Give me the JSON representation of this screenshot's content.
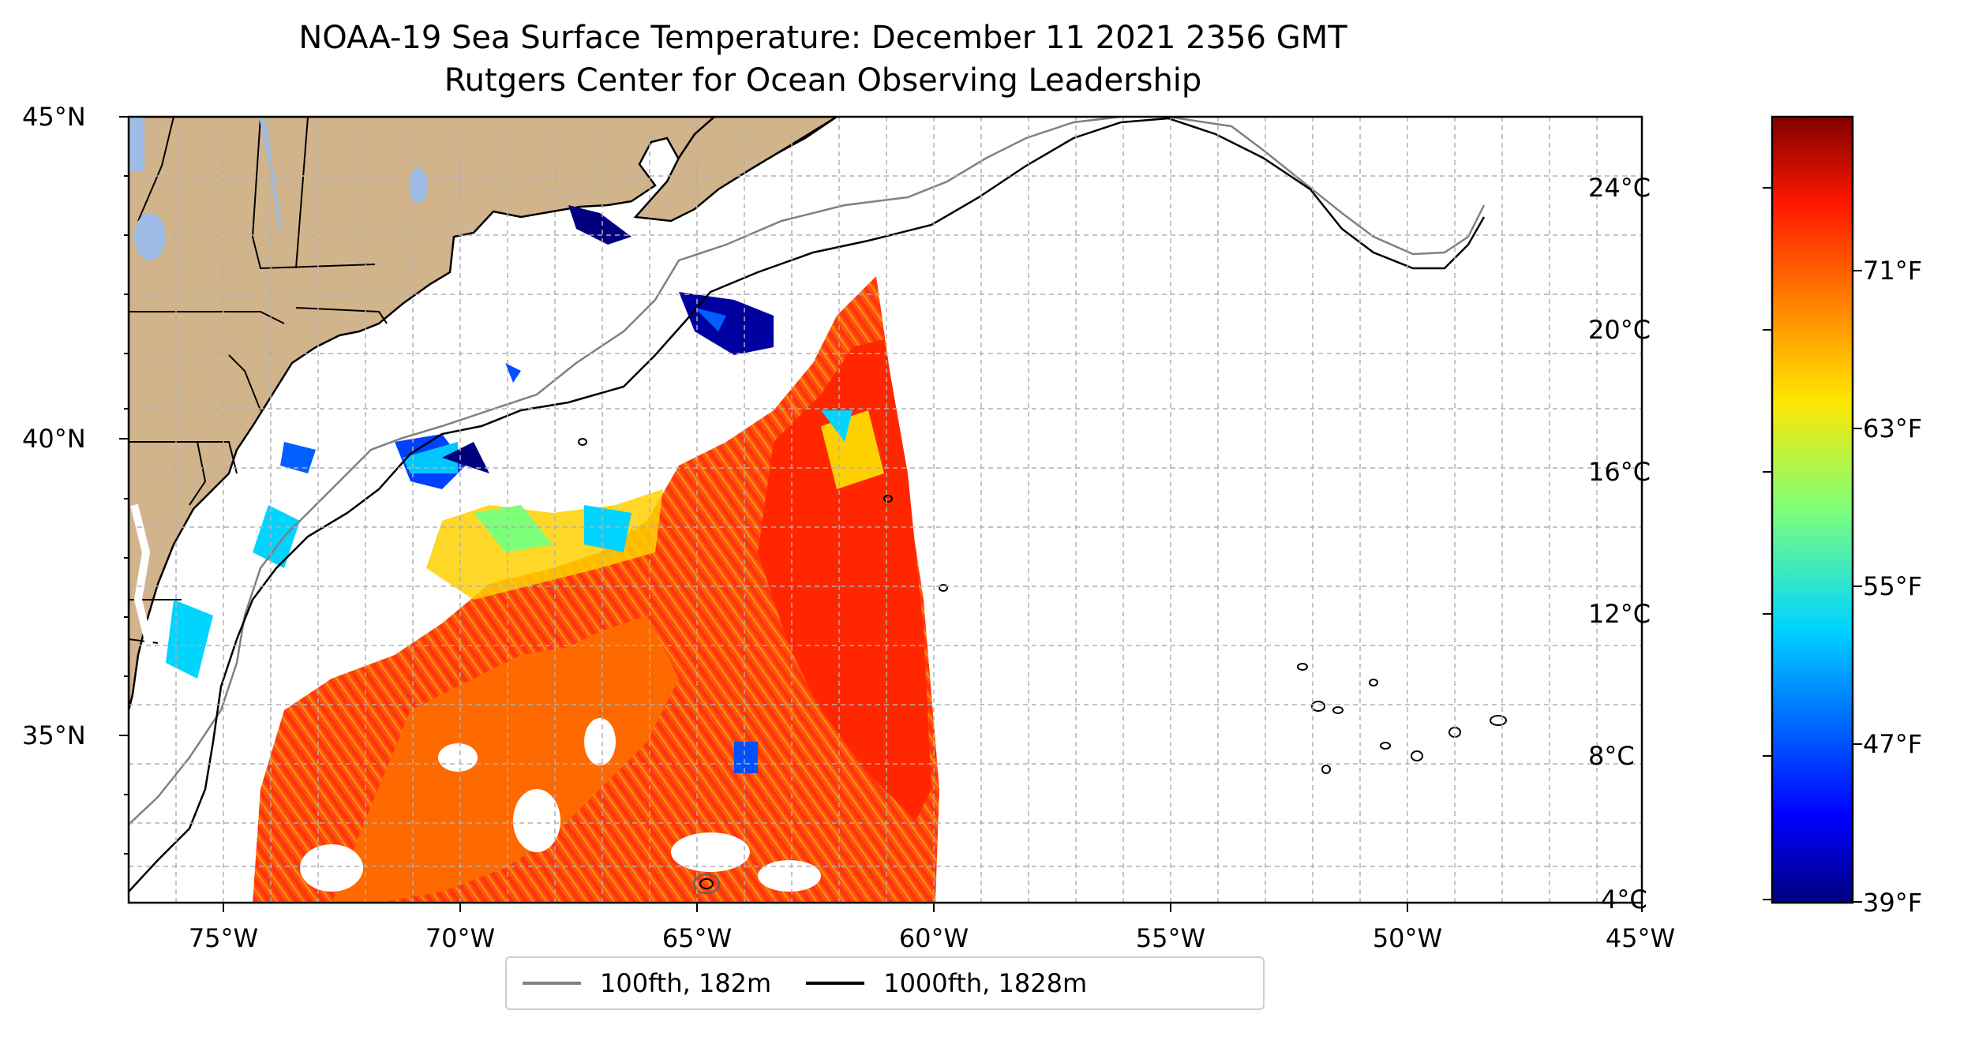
{
  "title": "NOAA-19 Sea Surface Temperature: December 11 2021 2356 GMT",
  "subtitle": "Rutgers Center for Ocean Observing Leadership",
  "map": {
    "lon_range": [
      -77,
      -45
    ],
    "lat_range": [
      32.5,
      45
    ],
    "lat_ticks": [
      {
        "value": 45,
        "label": "45°N"
      },
      {
        "value": 40,
        "label": "40°N"
      },
      {
        "value": 35,
        "label": "35°N"
      }
    ],
    "lon_ticks": [
      {
        "value": -75,
        "label": "75°W"
      },
      {
        "value": -70,
        "label": "70°W"
      },
      {
        "value": -65,
        "label": "65°W"
      },
      {
        "value": -60,
        "label": "60°W"
      },
      {
        "value": -55,
        "label": "55°W"
      },
      {
        "value": -50,
        "label": "50°W"
      },
      {
        "value": -45,
        "label": "45°W"
      }
    ],
    "land_color": "#d2b48c",
    "lake_color": "#9dbde6",
    "grid_lines": "dashed gray, every 1°"
  },
  "colorbar": {
    "colormap": "jet",
    "c_ticks": [
      {
        "value": 24,
        "label": "24°C"
      },
      {
        "value": 20,
        "label": "20°C"
      },
      {
        "value": 16,
        "label": "16°C"
      },
      {
        "value": 12,
        "label": "12°C"
      },
      {
        "value": 8,
        "label": "8°C"
      },
      {
        "value": 4,
        "label": "4°C"
      }
    ],
    "f_ticks": [
      {
        "value": 71,
        "label": "71°F"
      },
      {
        "value": 63,
        "label": "63°F"
      },
      {
        "value": 55,
        "label": "55°F"
      },
      {
        "value": 47,
        "label": "47°F"
      },
      {
        "value": 39,
        "label": "39°F"
      }
    ],
    "c_range": [
      4,
      26
    ]
  },
  "legend": {
    "items": [
      {
        "label": "100fth, 182m",
        "color": "#808080"
      },
      {
        "label": "1000fth, 1828m",
        "color": "#000000"
      }
    ]
  }
}
